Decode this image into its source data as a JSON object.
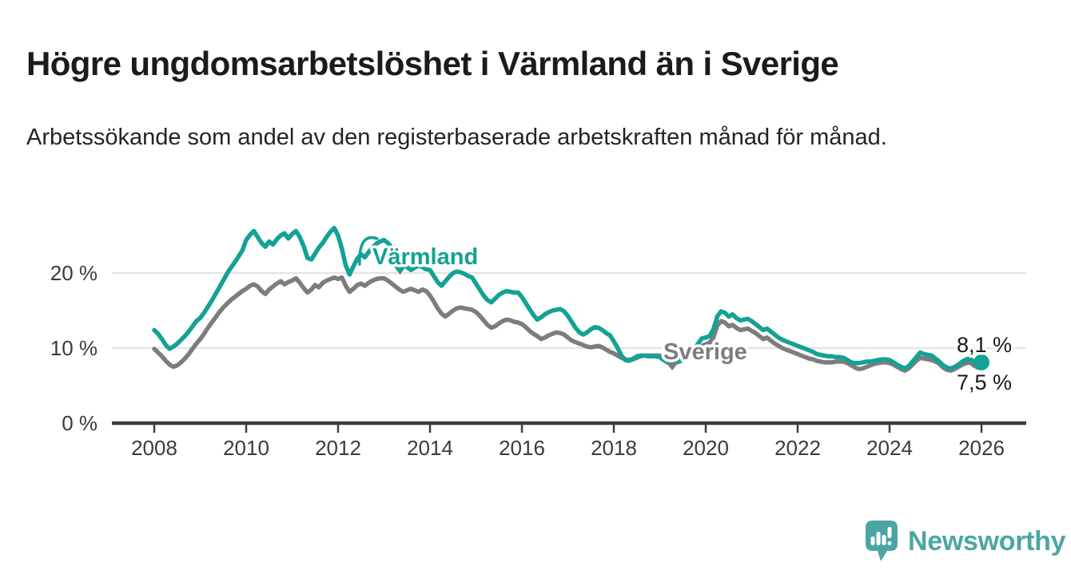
{
  "header": {
    "title": "Högre ungdomsarbetslöshet i Värmland än i Sverige",
    "subtitle": "Arbetssökande som andel av den registerbaserade arbetskraften månad för månad."
  },
  "footer": {
    "brand": "Newsworthy"
  },
  "colors": {
    "varmland_teal": "#13a295",
    "sverige_gray": "#7d7d7d",
    "logo_teal": "#4ba6a3",
    "grid": "#d8d8d8",
    "axis": "#3c3c3c",
    "text_dark": "#1a1a1a"
  },
  "chart_data": {
    "type": "line",
    "title": "Högre ungdomsarbetslöshet i Värmland än i Sverige",
    "subtitle": "Arbetssökande som andel av den registerbaserade arbetskraften månad för månad.",
    "xlabel": "",
    "ylabel": "",
    "x_start": {
      "year": 2008,
      "month": 1
    },
    "x_step_months": 1,
    "x_tick_labels": [
      "2008",
      "2010",
      "2012",
      "2014",
      "2016",
      "2018",
      "2020",
      "2022",
      "2024",
      "2026"
    ],
    "y_tick_labels": [
      "20 %",
      "10 %",
      "0 %"
    ],
    "y_ticks_pct": [
      20,
      10,
      0
    ],
    "ylim": [
      0,
      27
    ],
    "grid": "horizontal-only",
    "legend_position": "inline-annotations",
    "series": [
      {
        "name": "Värmland",
        "color": "#13a295",
        "end_label": "8,1 %",
        "values": [
          12.4,
          11.9,
          11.2,
          10.4,
          9.9,
          10.2,
          10.6,
          11.1,
          11.6,
          12.2,
          12.9,
          13.6,
          14.0,
          14.7,
          15.5,
          16.3,
          17.2,
          18.1,
          19.0,
          19.9,
          20.7,
          21.4,
          22.2,
          23.0,
          24.4,
          25.1,
          25.6,
          24.8,
          24.0,
          23.5,
          24.2,
          23.8,
          24.5,
          25.0,
          25.3,
          24.6,
          25.2,
          25.6,
          24.8,
          23.6,
          22.0,
          21.8,
          22.6,
          23.4,
          24.0,
          24.8,
          25.5,
          26.0,
          25.0,
          23.2,
          21.0,
          19.8,
          20.9,
          21.9,
          22.5,
          22.1,
          22.8,
          23.4,
          23.9,
          24.2,
          24.4,
          24.0,
          23.4,
          22.8,
          22.2,
          21.5,
          20.8,
          20.4,
          20.7,
          21.0,
          20.8,
          20.5,
          20.4,
          19.6,
          18.8,
          18.3,
          18.9,
          19.5,
          20.0,
          20.2,
          20.1,
          19.9,
          19.6,
          19.4,
          18.6,
          17.8,
          17.0,
          16.4,
          16.1,
          16.6,
          17.1,
          17.4,
          17.6,
          17.5,
          17.4,
          17.4,
          16.8,
          16.0,
          15.2,
          14.4,
          13.8,
          14.1,
          14.5,
          14.8,
          15.0,
          15.1,
          15.2,
          14.9,
          14.3,
          13.5,
          12.7,
          12.1,
          11.8,
          12.1,
          12.5,
          12.8,
          12.7,
          12.4,
          12.0,
          11.7,
          10.9,
          10.0,
          9.0,
          8.4,
          8.3,
          8.6,
          8.9,
          9.0,
          9.0,
          8.9,
          8.9,
          8.9,
          8.8,
          8.4,
          8.1,
          7.9,
          8.0,
          8.2,
          8.4,
          8.7,
          9.2,
          9.8,
          10.6,
          11.3,
          11.4,
          11.6,
          12.5,
          14.2,
          14.9,
          14.7,
          14.2,
          14.5,
          14.0,
          13.7,
          13.8,
          13.9,
          13.6,
          13.2,
          12.8,
          12.4,
          12.6,
          12.2,
          11.8,
          11.4,
          11.1,
          10.9,
          10.7,
          10.5,
          10.3,
          10.1,
          9.9,
          9.7,
          9.5,
          9.2,
          9.1,
          9.0,
          8.9,
          8.9,
          8.8,
          8.8,
          8.7,
          8.4,
          8.1,
          8.0,
          8.0,
          8.1,
          8.2,
          8.2,
          8.3,
          8.4,
          8.5,
          8.5,
          8.4,
          8.1,
          7.8,
          7.5,
          7.3,
          7.6,
          8.2,
          8.8,
          9.4,
          9.2,
          9.1,
          9.0,
          8.6,
          8.2,
          7.7,
          7.4,
          7.3,
          7.5,
          7.8,
          8.2,
          8.5,
          8.6,
          8.2,
          8.0,
          8.1
        ]
      },
      {
        "name": "Sverige",
        "color": "#7d7d7d",
        "end_label": "7,5 %",
        "values": [
          9.9,
          9.4,
          8.9,
          8.3,
          7.8,
          7.5,
          7.7,
          8.1,
          8.6,
          9.2,
          9.9,
          10.6,
          11.2,
          11.9,
          12.7,
          13.4,
          14.1,
          14.8,
          15.4,
          15.9,
          16.4,
          16.8,
          17.2,
          17.6,
          17.9,
          18.3,
          18.5,
          18.2,
          17.6,
          17.2,
          17.8,
          18.2,
          18.6,
          18.9,
          18.5,
          18.8,
          19.0,
          19.3,
          18.7,
          18.0,
          17.4,
          17.8,
          18.4,
          18.1,
          18.7,
          19.0,
          19.2,
          19.4,
          19.2,
          19.4,
          18.3,
          17.5,
          17.9,
          18.4,
          18.6,
          18.3,
          18.7,
          19.0,
          19.2,
          19.3,
          19.3,
          19.0,
          18.6,
          18.2,
          17.8,
          17.5,
          17.7,
          17.9,
          17.7,
          17.5,
          17.8,
          17.6,
          17.0,
          16.2,
          15.3,
          14.6,
          14.2,
          14.6,
          15.0,
          15.3,
          15.4,
          15.3,
          15.2,
          15.1,
          14.8,
          14.3,
          13.7,
          13.1,
          12.7,
          12.9,
          13.3,
          13.6,
          13.8,
          13.7,
          13.5,
          13.4,
          13.2,
          12.8,
          12.3,
          11.9,
          11.6,
          11.2,
          11.4,
          11.7,
          11.9,
          12.1,
          12.0,
          11.8,
          11.4,
          11.0,
          10.8,
          10.6,
          10.4,
          10.2,
          10.1,
          10.2,
          10.3,
          10.1,
          9.8,
          9.5,
          9.3,
          9.0,
          8.7,
          8.5,
          8.4,
          8.5,
          8.7,
          8.9,
          9.0,
          9.0,
          9.0,
          9.0,
          9.0,
          8.9,
          8.8,
          8.7,
          8.7,
          8.7,
          8.8,
          8.9,
          9.1,
          9.4,
          9.8,
          10.3,
          10.5,
          10.7,
          11.4,
          13.0,
          13.6,
          13.4,
          12.9,
          13.1,
          12.7,
          12.4,
          12.5,
          12.6,
          12.3,
          12.0,
          11.6,
          11.2,
          11.4,
          11.0,
          10.6,
          10.3,
          10.0,
          9.8,
          9.6,
          9.4,
          9.2,
          9.0,
          8.8,
          8.6,
          8.5,
          8.3,
          8.2,
          8.1,
          8.1,
          8.1,
          8.2,
          8.2,
          8.2,
          8.0,
          7.7,
          7.4,
          7.2,
          7.3,
          7.5,
          7.7,
          7.9,
          8.0,
          8.1,
          8.1,
          8.0,
          7.8,
          7.5,
          7.2,
          7.0,
          7.3,
          7.8,
          8.3,
          8.7,
          8.6,
          8.5,
          8.4,
          8.2,
          7.9,
          7.4,
          7.1,
          7.0,
          7.2,
          7.5,
          7.8,
          8.0,
          8.1,
          7.7,
          7.4,
          7.5
        ]
      }
    ]
  }
}
